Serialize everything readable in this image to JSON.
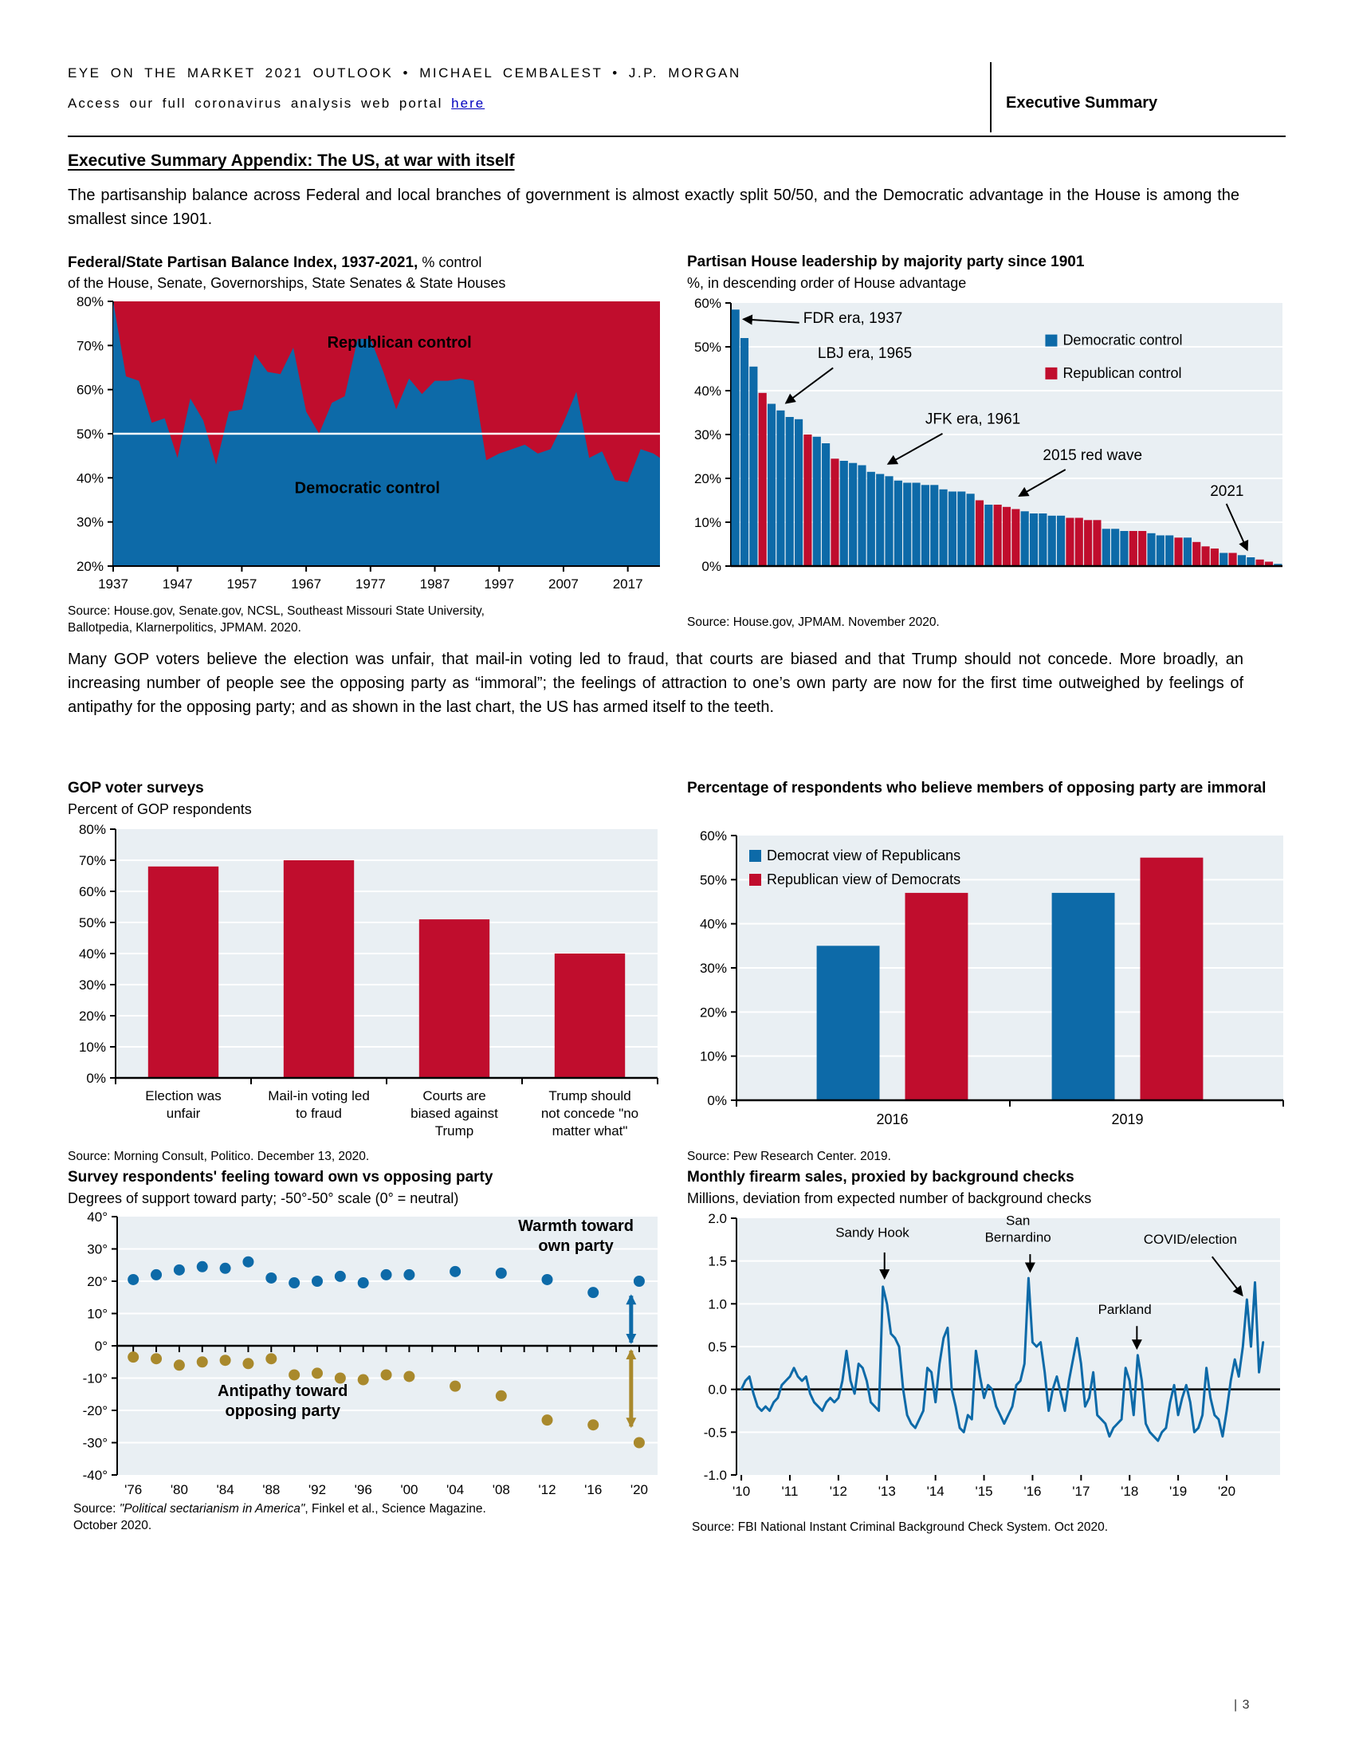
{
  "header": {
    "line1": "EYE ON THE MARKET 2021 OUTLOOK • MICHAEL CEMBALEST • J.P. MORGAN",
    "line2_prefix": "Access our full coronavirus analysis web portal ",
    "link_label": "here",
    "section_label": "Executive Summary"
  },
  "heading": "Executive Summary Appendix: The US, at war with itself",
  "paragraph1": "The partisanship balance across Federal and local branches of government is almost exactly split 50/50, and the Democratic advantage in the House is among the smallest since 1901.",
  "paragraph2": "Many GOP voters believe the election was unfair, that mail-in voting led to fraud, that courts are biased and that Trump should not concede.  More broadly, an increasing number of people see the opposing party as “immoral”; the feelings of attraction to one’s own party are now for the first time outweighed by feelings of antipathy for the opposing party; and as shown in the last chart, the US has armed itself to the teeth.",
  "footer": {
    "page_number": "| 3"
  },
  "colors": {
    "democrat_blue": "#0d6aa8",
    "republican_red": "#c00d2d",
    "gold": "#a9892c",
    "plot_bg": "#e9eff3",
    "grid_white": "#ffffff",
    "link_blue": "#0000bf"
  },
  "chart_data": [
    {
      "id": "partisan-balance",
      "type": "area",
      "title_bold": "Federal/State Partisan Balance Index, 1937-2021,",
      "title_normal": " % control",
      "subtitle": "of the House, Senate, Governorships, State Senates & State Houses",
      "source_line1": "Source: House.gov, Senate.gov, NCSL, Southeast Missouri State University,",
      "source_line2": "Ballotpedia, Klarnerpolitics, JPMAM. 2020.",
      "ylim": [
        20,
        80
      ],
      "ytick_step": 10,
      "yfmt": "pct",
      "xlim": [
        1937,
        2022
      ],
      "xticks": [
        1937,
        1947,
        1957,
        1967,
        1977,
        1987,
        1997,
        2007,
        2017
      ],
      "years": [
        1937,
        1939,
        1941,
        1943,
        1945,
        1947,
        1949,
        1951,
        1953,
        1955,
        1957,
        1959,
        1961,
        1963,
        1965,
        1967,
        1969,
        1971,
        1973,
        1975,
        1977,
        1979,
        1981,
        1983,
        1985,
        1987,
        1989,
        1991,
        1993,
        1995,
        1997,
        1999,
        2001,
        2003,
        2005,
        2007,
        2009,
        2011,
        2013,
        2015,
        2017,
        2019,
        2021,
        2022
      ],
      "dem_share": [
        80,
        63,
        62,
        52.5,
        53.5,
        44.5,
        58,
        53,
        43,
        55,
        55.5,
        68,
        64,
        63.5,
        69.5,
        55,
        50,
        57,
        58.5,
        71.5,
        71.5,
        64,
        55.5,
        62.5,
        59,
        62,
        62,
        62.5,
        62,
        44,
        45.5,
        46.5,
        47.5,
        45.5,
        46.5,
        52.5,
        59.5,
        44.5,
        46,
        39.5,
        39,
        46.5,
        45.5,
        44.5
      ],
      "ref_line": 50,
      "area_labels": [
        {
          "text": "Republican control",
          "x": 1981.5,
          "y": 69.5
        },
        {
          "text": "Democratic control",
          "x": 1976.5,
          "y": 36.5
        }
      ]
    },
    {
      "id": "house-leadership",
      "type": "sorted-bars",
      "title_bold": "Partisan House leadership by majority party since 1901",
      "title_normal": "",
      "subtitle": "%, in descending order of House advantage",
      "source_line1": "Source: House.gov, JPMAM. November 2020.",
      "ylim": [
        0,
        60
      ],
      "ytick_step": 10,
      "yfmt": "pct",
      "values": [
        58.5,
        52,
        45.5,
        39.5,
        37,
        35.5,
        34,
        33.5,
        30,
        29.5,
        28,
        24.5,
        24,
        23.5,
        23,
        21.5,
        21,
        20.5,
        19.5,
        19,
        19,
        18.5,
        18.5,
        17.5,
        17,
        17,
        16.5,
        15,
        14,
        14,
        13.5,
        13,
        12.5,
        12,
        12,
        11.5,
        11.5,
        11,
        11,
        10.5,
        10.5,
        8.5,
        8.5,
        8,
        8,
        8,
        7.5,
        7,
        7,
        6.5,
        6.5,
        5.5,
        4.5,
        4,
        3,
        3,
        2.5,
        2,
        1.5,
        1,
        0.5
      ],
      "party": [
        "D",
        "D",
        "D",
        "R",
        "D",
        "D",
        "D",
        "D",
        "R",
        "D",
        "D",
        "R",
        "D",
        "D",
        "D",
        "D",
        "D",
        "D",
        "D",
        "D",
        "D",
        "D",
        "D",
        "D",
        "D",
        "D",
        "D",
        "R",
        "D",
        "R",
        "R",
        "R",
        "D",
        "D",
        "D",
        "D",
        "D",
        "R",
        "R",
        "R",
        "R",
        "D",
        "D",
        "D",
        "R",
        "R",
        "D",
        "D",
        "D",
        "R",
        "D",
        "R",
        "R",
        "R",
        "D",
        "R",
        "D",
        "D",
        "R",
        "R",
        "D"
      ],
      "legend": [
        {
          "label": "Democratic control",
          "party": "D"
        },
        {
          "label": "Republican control",
          "party": "R"
        }
      ],
      "annotations": [
        {
          "text": "FDR era, 1937",
          "bx": 8.0,
          "by": 55.5,
          "line": [
            7.55,
            55.5,
            1.4,
            56.3
          ]
        },
        {
          "text": "LBJ era, 1965",
          "bx": 9.6,
          "by": 47.5,
          "line": [
            11.3,
            45.2,
            6.1,
            37.2
          ]
        },
        {
          "text": "JFK era, 1961",
          "bx": 21.5,
          "by": 32.5,
          "line": [
            23.4,
            30.2,
            17.4,
            23.3
          ]
        },
        {
          "text": "2015 red wave",
          "bx": 34.5,
          "by": 24.2,
          "line": [
            37.0,
            22.0,
            31.9,
            16.0
          ]
        },
        {
          "text": "2021",
          "bx": 53.0,
          "by": 16.0,
          "line": [
            54.8,
            14.2,
            57.1,
            3.7
          ]
        }
      ]
    },
    {
      "id": "gop-surveys",
      "type": "category-bars",
      "title_bold": "GOP voter surveys",
      "title_normal": "",
      "subtitle": "Percent of GOP respondents",
      "source_line1": "Source: Morning Consult, Politico. December 13, 2020.",
      "ylim": [
        0,
        80
      ],
      "ytick_step": 10,
      "yfmt": "pct",
      "categories": [
        [
          "Election was",
          "unfair"
        ],
        [
          "Mail-in voting led",
          "to fraud"
        ],
        [
          "Courts are",
          "biased against",
          "Trump"
        ],
        [
          "Trump should",
          "not concede \"no",
          "matter what\""
        ]
      ],
      "values": [
        68,
        70,
        51,
        40
      ]
    },
    {
      "id": "immoral",
      "type": "grouped-bars",
      "title_bold": "Percentage of respondents who believe members of opposing party are immoral",
      "title_normal": "",
      "subtitle": "",
      "source_line1": "Source: Pew Research Center. 2019.",
      "ylim": [
        0,
        60
      ],
      "ytick_step": 10,
      "yfmt": "pct",
      "groups": [
        "2016",
        "2019"
      ],
      "series": [
        {
          "name": "Democrat view of Republicans",
          "party": "D",
          "values": [
            35,
            47
          ]
        },
        {
          "name": "Republican view of Democrats",
          "party": "R",
          "values": [
            47,
            55
          ]
        }
      ]
    },
    {
      "id": "feelings",
      "type": "scatter",
      "title_bold": "Survey respondents' feeling toward own vs opposing party",
      "title_normal": "",
      "subtitle": "Degrees of support toward party; -50°-50° scale (0° = neutral)",
      "source_prefix": "Source: ",
      "source_italic": "\"Political sectarianism in America\"",
      "source_suffix": ", Finkel et al., Science Magazine.",
      "source_line2": "October 2020.",
      "ylim": [
        -40,
        40
      ],
      "ytick_step": 10,
      "yfmt": "deg",
      "xlim": [
        1974.6,
        2021.6
      ],
      "xticks": [
        1976,
        1980,
        1984,
        1988,
        1992,
        1996,
        2000,
        2004,
        2008,
        2012,
        2016,
        2020
      ],
      "xtick_labels": [
        "'76",
        "'80",
        "'84",
        "'88",
        "'92",
        "'96",
        "'00",
        "'04",
        "'08",
        "'12",
        "'16",
        "'20"
      ],
      "x": [
        1976,
        1978,
        1980,
        1982,
        1984,
        1986,
        1988,
        1990,
        1992,
        1994,
        1996,
        1998,
        2000,
        2004,
        2008,
        2012,
        2016,
        2020
      ],
      "warmth": [
        20.5,
        22,
        23.5,
        24.5,
        24,
        26,
        21,
        19.5,
        20,
        21.5,
        19.5,
        22,
        22,
        23,
        22.5,
        20.5,
        16.5,
        20
      ],
      "antipathy": [
        -3.5,
        -4,
        -6,
        -5,
        -4.5,
        -5.5,
        -4,
        -9,
        -8.5,
        -10,
        -10.5,
        -9,
        -9.5,
        -12.5,
        -15.5,
        -23,
        -24.5,
        -30
      ],
      "labels": [
        {
          "lines": [
            "Warmth toward",
            "own party"
          ],
          "x": 2014.5,
          "y": 35.5,
          "color": "D"
        },
        {
          "lines": [
            "Antipathy toward",
            "opposing party"
          ],
          "x": 1989,
          "y": -15.5,
          "color": "G"
        }
      ],
      "arrows": [
        {
          "x": 2019.3,
          "y1": 15.5,
          "y2": 1.0,
          "color": "D"
        },
        {
          "x": 2019.3,
          "y1": -1.5,
          "y2": -25.0,
          "color": "G"
        }
      ]
    },
    {
      "id": "firearms",
      "type": "line",
      "title_bold": "Monthly firearm sales, proxied by background checks",
      "title_normal": "",
      "subtitle": "Millions, deviation from expected number of background checks",
      "source_line1": "Source: FBI National Instant Criminal Background Check System. Oct 2020.",
      "ylim": [
        -1,
        2
      ],
      "ytick_step": 0.5,
      "yfmt": "dec1",
      "xlim": [
        2009.9,
        2021.1
      ],
      "xticks": [
        2010,
        2011,
        2012,
        2013,
        2014,
        2015,
        2016,
        2017,
        2018,
        2019,
        2020
      ],
      "xtick_labels": [
        "'10",
        "'11",
        "'12",
        "'13",
        "'14",
        "'15",
        "'16",
        "'17",
        "'18",
        "'19",
        "'20"
      ],
      "x_start": 2010,
      "values": [
        0.0,
        0.1,
        0.15,
        -0.05,
        -0.2,
        -0.25,
        -0.2,
        -0.25,
        -0.15,
        -0.1,
        0.05,
        0.1,
        0.15,
        0.25,
        0.15,
        0.1,
        0.15,
        -0.05,
        -0.15,
        -0.2,
        -0.25,
        -0.15,
        -0.1,
        -0.15,
        -0.1,
        0.1,
        0.45,
        0.1,
        -0.05,
        0.3,
        0.25,
        0.1,
        -0.15,
        -0.2,
        -0.25,
        1.2,
        1.0,
        0.65,
        0.6,
        0.5,
        0.0,
        -0.3,
        -0.4,
        -0.45,
        -0.35,
        -0.25,
        0.25,
        0.2,
        -0.15,
        0.3,
        0.6,
        0.72,
        0.0,
        -0.2,
        -0.45,
        -0.5,
        -0.3,
        -0.35,
        0.45,
        0.15,
        -0.1,
        0.05,
        0.0,
        -0.2,
        -0.3,
        -0.4,
        -0.3,
        -0.2,
        0.05,
        0.1,
        0.3,
        1.3,
        0.55,
        0.5,
        0.55,
        0.2,
        -0.25,
        0.0,
        0.15,
        -0.05,
        -0.25,
        0.1,
        0.35,
        0.6,
        0.3,
        -0.2,
        -0.1,
        0.2,
        -0.3,
        -0.35,
        -0.4,
        -0.55,
        -0.45,
        -0.4,
        -0.35,
        0.25,
        0.1,
        -0.3,
        0.4,
        0.1,
        -0.4,
        -0.5,
        -0.55,
        -0.6,
        -0.5,
        -0.45,
        -0.15,
        0.05,
        -0.3,
        -0.1,
        0.05,
        -0.15,
        -0.5,
        -0.45,
        -0.3,
        0.25,
        -0.1,
        -0.3,
        -0.35,
        -0.55,
        -0.25,
        0.1,
        0.35,
        0.15,
        0.5,
        1.05,
        0.5,
        1.25,
        0.2,
        0.55
      ],
      "annotations": [
        {
          "lines": [
            "Sandy Hook"
          ],
          "tx": 2012.7,
          "ty": 1.78,
          "line": [
            2012.95,
            1.6,
            2012.95,
            1.3
          ]
        },
        {
          "lines": [
            "San",
            "Bernardino"
          ],
          "tx": 2015.7,
          "ty": 1.92,
          "line": [
            2015.95,
            1.58,
            2015.95,
            1.38
          ]
        },
        {
          "lines": [
            "Parkland"
          ],
          "tx": 2017.9,
          "ty": 0.88,
          "line": [
            2018.15,
            0.74,
            2018.15,
            0.48
          ]
        },
        {
          "lines": [
            "COVID/election"
          ],
          "tx": 2019.25,
          "ty": 1.7,
          "line": [
            2019.7,
            1.55,
            2020.32,
            1.1
          ]
        }
      ]
    }
  ]
}
